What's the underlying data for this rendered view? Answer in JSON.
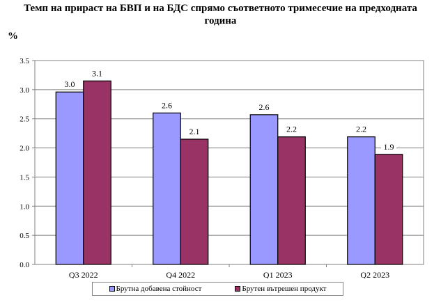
{
  "title_line1": "Темп на прираст на БВП и на БДС спрямо съответното тримесечие на предходната",
  "title_line2": "година",
  "unit": "%",
  "colors": {
    "bdc": "#9999ff",
    "gdp": "#993366"
  },
  "legend": [
    {
      "label": "Брутна добавена стойност",
      "color": "#9999ff"
    },
    {
      "label": "Брутен вътрешен продукт",
      "color": "#993366"
    }
  ],
  "chart_data": {
    "type": "bar",
    "title": "Темп на прираст на БВП и на БДС спрямо съответното тримесечие на предходната година",
    "xlabel": "",
    "ylabel": "%",
    "ylim": [
      0,
      3.5
    ],
    "yticks": [
      "0.0",
      "0.5",
      "1.0",
      "1.5",
      "2.0",
      "2.5",
      "3.0",
      "3.5"
    ],
    "grid": true,
    "legend_position": "bottom",
    "categories": [
      "Q3 2022",
      "Q4 2022",
      "Q1 2023",
      "Q2 2023"
    ],
    "series": [
      {
        "name": "Брутна добавена стойност",
        "values": [
          2.96,
          2.6,
          2.57,
          2.19
        ],
        "labels": [
          "3.0",
          "2.6",
          "2.6",
          "2.2"
        ]
      },
      {
        "name": "Брутен вътрешен продукт",
        "values": [
          3.15,
          2.15,
          2.19,
          1.89
        ],
        "labels": [
          "3.1",
          "2.1",
          "2.2",
          "1.9"
        ]
      }
    ]
  }
}
